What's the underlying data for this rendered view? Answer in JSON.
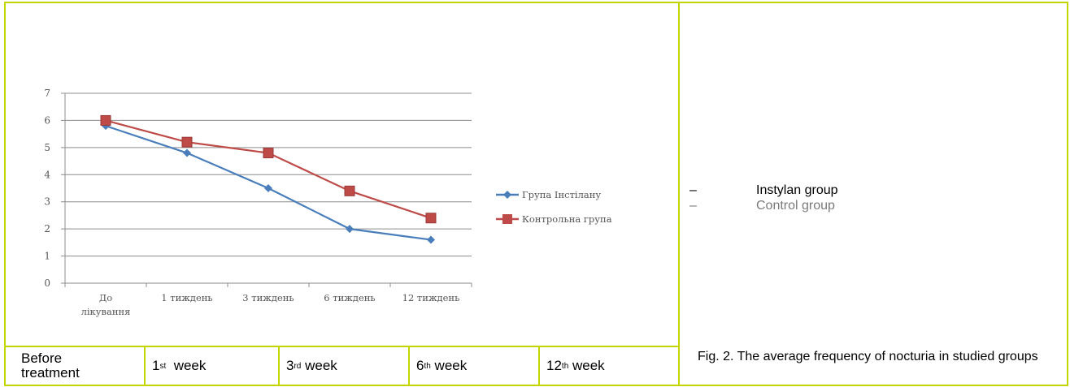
{
  "chart_data": {
    "type": "line",
    "categories": [
      "До лікування",
      "1 тиждень",
      "3 тиждень",
      "6 тиждень",
      "12 тиждень"
    ],
    "series": [
      {
        "name": "Група Інстілану",
        "values": [
          5.8,
          4.8,
          3.5,
          2.0,
          1.6
        ],
        "color": "#4a7ebb",
        "marker": "diamond"
      },
      {
        "name": "Контрольна група",
        "values": [
          6.0,
          5.2,
          4.8,
          3.4,
          2.4
        ],
        "color": "#be4b48",
        "marker": "square"
      }
    ],
    "yticks": [
      "0",
      "1",
      "2",
      "3",
      "4",
      "5",
      "6",
      "7"
    ],
    "ylim": [
      0,
      7
    ],
    "grid": true,
    "legend": "right"
  },
  "legend_en": [
    {
      "dash": "–",
      "label": "Instylan group"
    },
    {
      "dash": "–",
      "label": "Control group"
    }
  ],
  "week_table": [
    {
      "pre": "Before treatment",
      "sup": ""
    },
    {
      "pre": "1",
      "sup": "st",
      "post": "  week"
    },
    {
      "pre": "3",
      "sup": "rd",
      "post": " week"
    },
    {
      "pre": "6",
      "sup": "th",
      "post": " week"
    },
    {
      "pre": "12",
      "sup": "th",
      "post": " week"
    }
  ],
  "caption": "Fig. 2. The average frequency of nocturia in studied groups"
}
